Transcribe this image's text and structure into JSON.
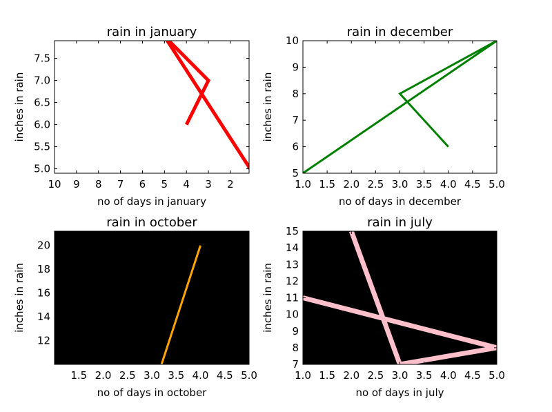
{
  "chart_data": [
    {
      "type": "line",
      "title": "rain in january",
      "xlabel": "no of days in january",
      "ylabel": "inches in rain",
      "xlim": [
        10,
        1.15
      ],
      "ylim": [
        4.9,
        7.9
      ],
      "x_ticks": [
        "10",
        "9",
        "8",
        "7",
        "6",
        "5",
        "4",
        "3",
        "2"
      ],
      "y_ticks": [
        "5.0",
        "5.5",
        "6.0",
        "6.5",
        "7.0",
        "7.5"
      ],
      "background": "#ffffff",
      "series": [
        {
          "color": "#ff0000",
          "line_width": 5,
          "x": [
            4,
            3,
            5,
            1.1
          ],
          "y": [
            6,
            7,
            8,
            5
          ]
        }
      ]
    },
    {
      "type": "line",
      "title": "rain in december",
      "xlabel": "no of days in december",
      "ylabel": "inches in rain",
      "xlim": [
        1.0,
        5.0
      ],
      "ylim": [
        5,
        10
      ],
      "x_ticks": [
        "1.0",
        "1.5",
        "2.0",
        "2.5",
        "3.0",
        "3.5",
        "4.0",
        "4.5",
        "5.0"
      ],
      "y_ticks": [
        "5",
        "6",
        "7",
        "8",
        "9",
        "10"
      ],
      "background": "#ffffff",
      "series": [
        {
          "color": "#008000",
          "line_width": 3,
          "x": [
            4,
            3,
            5,
            1
          ],
          "y": [
            6,
            8,
            10,
            5
          ]
        }
      ]
    },
    {
      "type": "line",
      "title": "rain in october",
      "xlabel": "no of days in october",
      "ylabel": "inches in rain",
      "xlim": [
        1.0,
        5.0
      ],
      "ylim": [
        10,
        21.2
      ],
      "x_ticks": [
        "1.5",
        "2.0",
        "2.5",
        "3.0",
        "3.5",
        "4.0",
        "4.5",
        "5.0"
      ],
      "y_ticks": [
        "12",
        "14",
        "16",
        "18",
        "20"
      ],
      "background": "#000000",
      "series": [
        {
          "color": "#ffa500",
          "line_width": 3,
          "x": [
            3.2,
            4
          ],
          "y": [
            10,
            20
          ]
        }
      ]
    },
    {
      "type": "line",
      "title": "rain in july",
      "xlabel": "no of days in july",
      "ylabel": "inches in rain",
      "xlim": [
        1.0,
        5.0
      ],
      "ylim": [
        7,
        15
      ],
      "x_ticks": [
        "1.0",
        "1.5",
        "2.0",
        "2.5",
        "3.0",
        "3.5",
        "4.0",
        "4.5",
        "5.0"
      ],
      "y_ticks": [
        "7",
        "8",
        "9",
        "10",
        "11",
        "12",
        "13",
        "14",
        "15"
      ],
      "background": "#000000",
      "series": [
        {
          "color": "#ffc0cb",
          "line_width": 7,
          "x": [
            2,
            3,
            5,
            1
          ],
          "y": [
            15,
            7,
            8,
            11
          ]
        }
      ]
    }
  ]
}
